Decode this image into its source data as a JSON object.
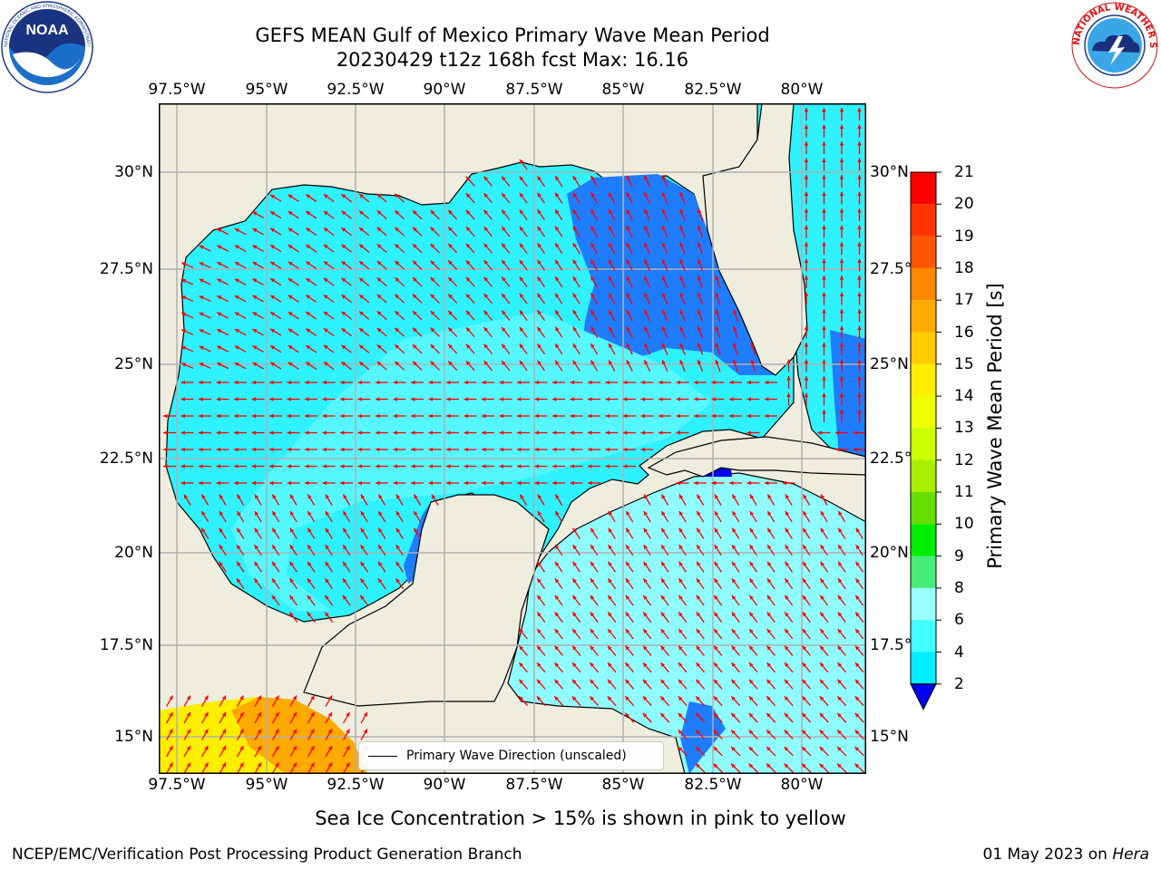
{
  "title_line1": "GEFS MEAN Gulf of Mexico Primary Wave Mean Period",
  "title_line2": "20230429 t12z 168h fcst   Max: 16.16",
  "lon_labels": [
    "97.5°W",
    "95°W",
    "92.5°W",
    "90°W",
    "87.5°W",
    "85°W",
    "82.5°W",
    "80°W"
  ],
  "lat_labels": [
    "30°N",
    "27.5°N",
    "25°N",
    "22.5°N",
    "20°N",
    "17.5°N",
    "15°N"
  ],
  "colorbar": {
    "label": "Primary Wave Mean Period [s]",
    "ticks": [
      "21",
      "20",
      "19",
      "18",
      "17",
      "16",
      "15",
      "14",
      "13",
      "12",
      "11",
      "10",
      "9",
      "8",
      "6",
      "4",
      "2"
    ],
    "colors": [
      "#ff0000",
      "#ff3300",
      "#ff5500",
      "#ff8800",
      "#ffaa00",
      "#ffcc00",
      "#ffee00",
      "#eeff00",
      "#ccff00",
      "#aaee00",
      "#66dd00",
      "#00ee00",
      "#44ee77",
      "#99ffff",
      "#44ffff",
      "#00eeff",
      "#1e7cff"
    ],
    "under_color": "#0000ee"
  },
  "legend_label": "Primary Wave Direction (unscaled)",
  "note": "Sea Ice Concentration > 15% is shown in pink to yellow",
  "footer_left": "NCEP/EMC/Verification Post Processing Product Generation Branch",
  "footer_date": "01 May 2023 on ",
  "footer_host": "Hera",
  "colors": {
    "land": "#efedde",
    "ocean_base": "#2ef2ff",
    "arrow": "#ff0000",
    "grid": "#b0b0b0"
  },
  "logos": {
    "left": "NOAA",
    "left_ring": "NATIONAL OCEANIC AND ATMOSPHERIC ADMINISTRATION · U.S. DEPARTMENT OF COMMERCE",
    "right": "NATIONAL WEATHER SERVICE"
  }
}
